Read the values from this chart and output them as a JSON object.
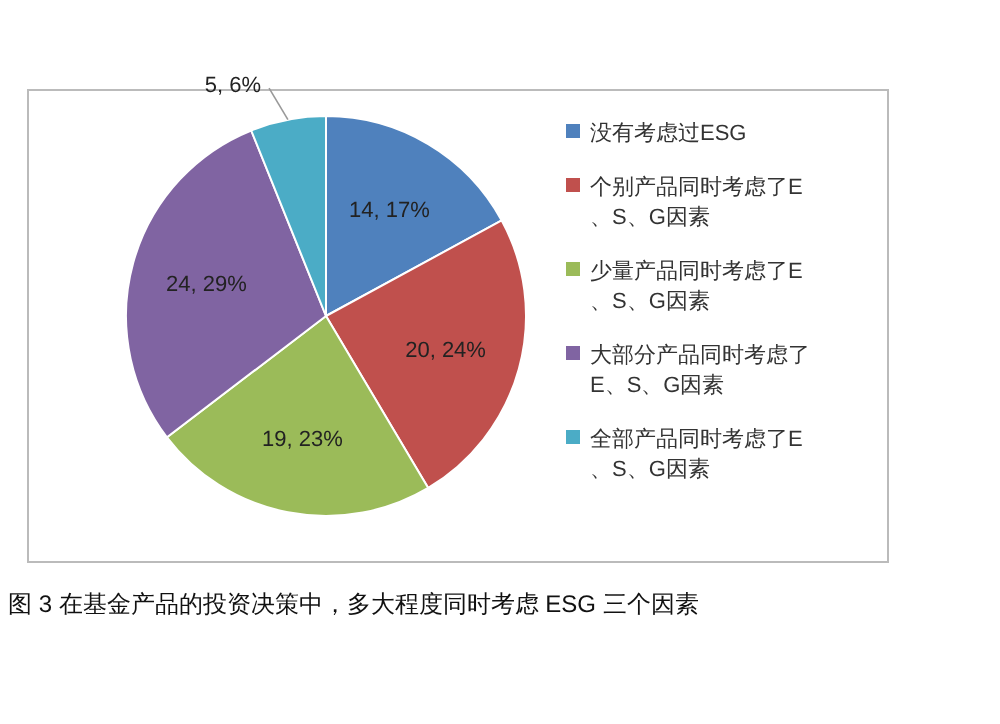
{
  "chart_data": {
    "type": "pie",
    "categories": [
      "没有考虑过ESG",
      "个别产品同时考虑了E、S、G因素",
      "少量产品同时考虑了E、S、G因素",
      "大部分产品同时考虑了E、S、G因素",
      "全部产品同时考虑了E、S、G因素"
    ],
    "values": [
      14,
      20,
      19,
      24,
      5
    ],
    "value_labels": [
      "14, 17%",
      "20, 24%",
      "19, 23%",
      "24, 29%",
      "5, 6%"
    ],
    "colors": [
      "#4f81bd",
      "#c0504d",
      "#9bbb59",
      "#8064a2",
      "#4bacc6"
    ],
    "legend": "right",
    "annotations": [
      "图 3 在基金产品的投资决策中，多大程度同时考虑 ESG 三个因素"
    ]
  }
}
